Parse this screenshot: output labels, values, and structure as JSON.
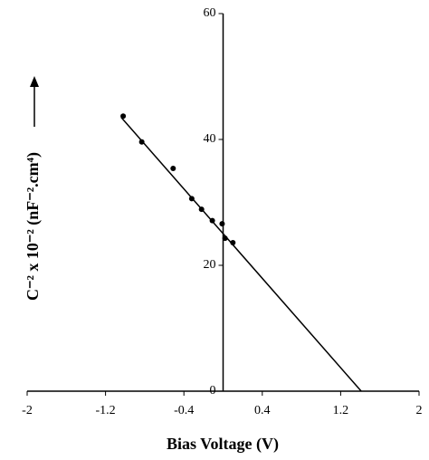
{
  "chart_data": {
    "type": "scatter",
    "xlabel": "Bias Voltage (V)",
    "ylabel": "C⁻² x 10⁻² (nF⁻².cm⁴)",
    "xlim": [
      -2,
      2
    ],
    "xticks": [
      -2,
      -1.2,
      -0.4,
      0.4,
      1.2,
      2
    ],
    "ylim": [
      0,
      60
    ],
    "yticks": [
      0,
      20,
      40,
      60
    ],
    "color": "#000000",
    "x": [
      -1.02,
      -0.83,
      -0.51,
      -0.32,
      -0.22,
      -0.11,
      -0.01,
      0.02,
      0.1
    ],
    "values": [
      43.7,
      39.6,
      35.4,
      30.6,
      28.9,
      27.1,
      26.6,
      24.3,
      23.6
    ],
    "fit": {
      "x": [
        -1.04,
        1.41
      ],
      "values": [
        43.5,
        0
      ]
    }
  }
}
